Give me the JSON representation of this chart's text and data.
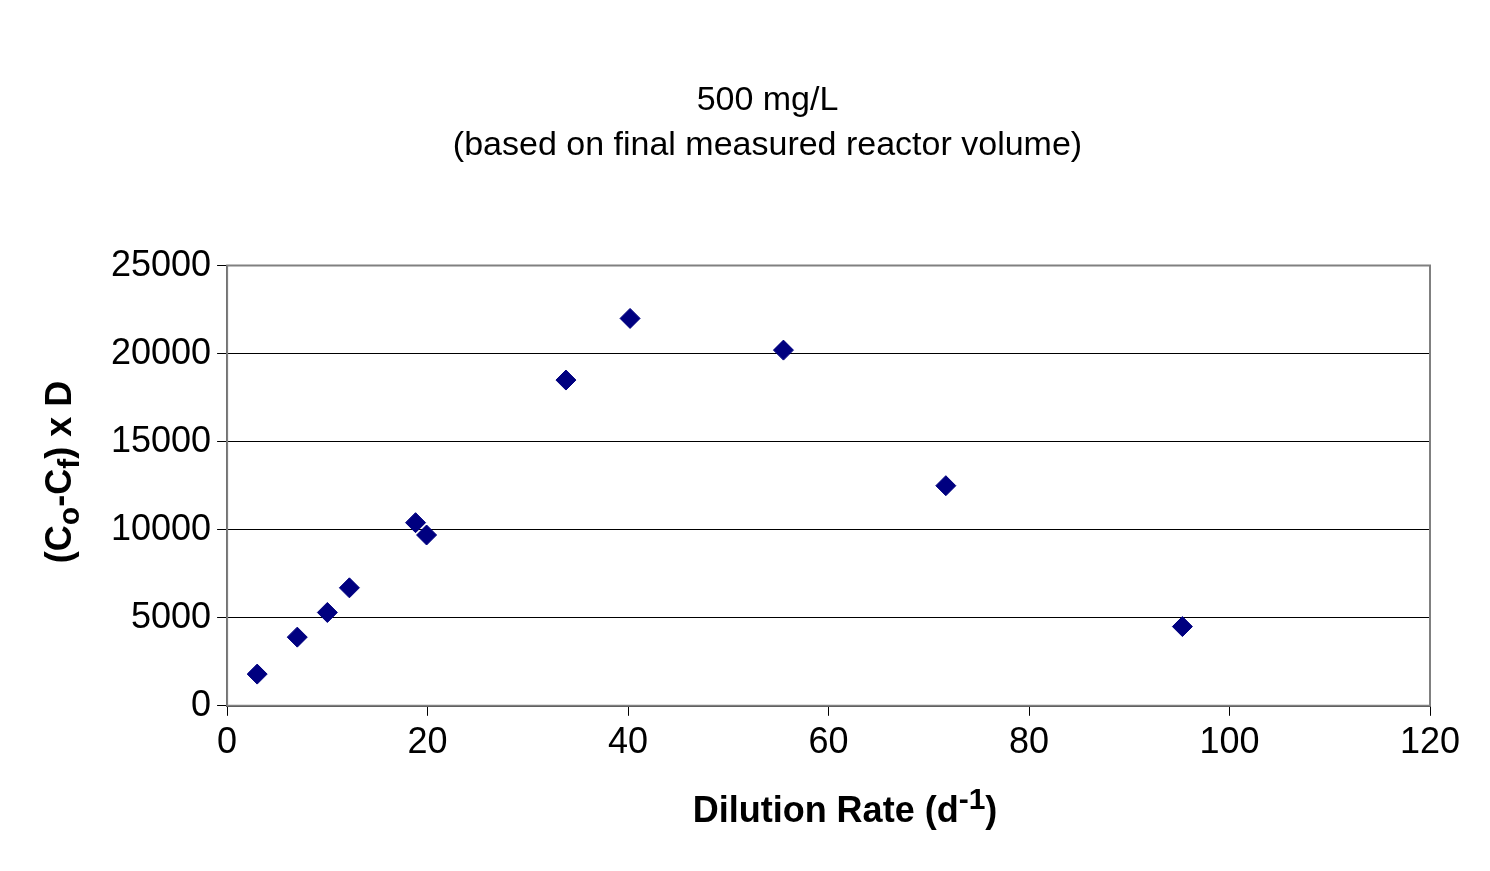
{
  "chart_data": {
    "type": "scatter",
    "title": "500 mg/L",
    "subtitle": "(based on final measured reactor volume)",
    "xlabel": "Dilution Rate (d$^{-1}$)",
    "ylabel": "(C$_{o}$-C$_{f}$) x D",
    "x": [
      3.0,
      7.0,
      10.0,
      12.2,
      18.8,
      19.9,
      33.8,
      40.2,
      55.5,
      71.7,
      95.3
    ],
    "series": [
      {
        "color": "#000080",
        "values": [
          1800,
          3900,
          5300,
          6700,
          10400,
          9700,
          18500,
          22000,
          20200,
          12500,
          4500
        ]
      }
    ],
    "xlim": [
      0,
      120
    ],
    "xticks": [
      0,
      20,
      40,
      60,
      80,
      100,
      120
    ],
    "ylim": [
      0,
      25000
    ],
    "yticks": [
      0,
      5000,
      10000,
      15000,
      20000,
      25000
    ],
    "grid": "y",
    "legend": false,
    "marker": "diamond"
  }
}
